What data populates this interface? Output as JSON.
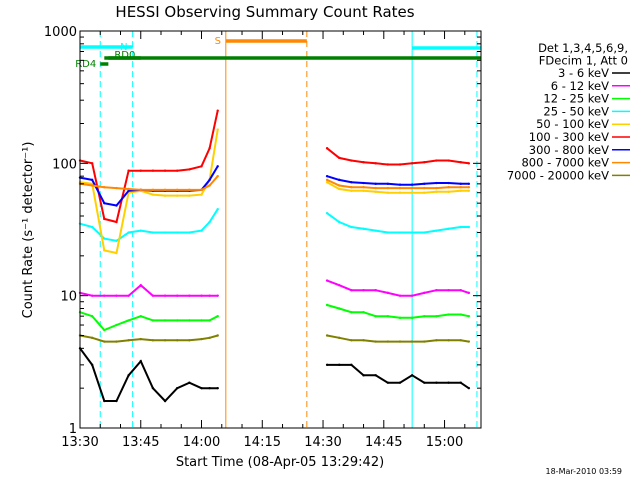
{
  "chart_data": {
    "type": "line",
    "title": "HESSI Observing Summary Count Rates",
    "xlabel": "Start Time (08-Apr-05 13:29:42)",
    "ylabel": "Count Rate (s⁻¹ detector⁻¹)",
    "log_y": true,
    "ylim": [
      1,
      1000
    ],
    "xlim": [
      "13:30",
      "15:09"
    ],
    "x_ticks": [
      "13:30",
      "13:45",
      "14:00",
      "14:15",
      "14:30",
      "14:45",
      "15:00"
    ],
    "y_ticks": [
      "1",
      "10",
      "100",
      "1000"
    ],
    "legend_header": [
      "Det 1,3,4,5,6,9,",
      "FDecim 1, Att 0"
    ],
    "legend_position": "right",
    "timestamp": "18-Mar-2010 03:59",
    "series": [
      {
        "name": "3 - 6 keV",
        "color": "#000000",
        "x": [
          "13:30",
          "13:33",
          "13:36",
          "13:39",
          "13:42",
          "13:45",
          "13:48",
          "13:51",
          "13:54",
          "13:57",
          "14:00",
          "14:02",
          "14:04",
          null,
          "14:31",
          "14:34",
          "14:37",
          "14:40",
          "14:43",
          "14:46",
          "14:49",
          "14:52",
          "14:55",
          "14:58",
          "15:01",
          "15:04",
          "15:06"
        ],
        "values": [
          4,
          3,
          1.6,
          1.6,
          2.5,
          3.2,
          2,
          1.6,
          2,
          2.2,
          2,
          2,
          2,
          null,
          3,
          3,
          3,
          2.5,
          2.5,
          2.2,
          2.2,
          2.5,
          2.2,
          2.2,
          2.2,
          2.2,
          2
        ]
      },
      {
        "name": "6 - 12 keV",
        "color": "#ff00ff",
        "x": [
          "13:30",
          "13:33",
          "13:36",
          "13:39",
          "13:42",
          "13:45",
          "13:48",
          "13:51",
          "13:54",
          "13:57",
          "14:00",
          "14:02",
          "14:04",
          null,
          "14:31",
          "14:34",
          "14:37",
          "14:40",
          "14:43",
          "14:46",
          "14:49",
          "14:52",
          "14:55",
          "14:58",
          "15:01",
          "15:04",
          "15:06"
        ],
        "values": [
          10.5,
          10,
          10,
          10,
          10,
          12,
          10,
          10,
          10,
          10,
          10,
          10,
          10,
          null,
          13,
          12,
          11,
          11,
          11,
          10.5,
          10,
          10,
          10.5,
          11,
          11,
          11,
          10.5
        ]
      },
      {
        "name": "12 - 25 keV",
        "color": "#00ff00",
        "x": [
          "13:30",
          "13:33",
          "13:36",
          "13:39",
          "13:42",
          "13:45",
          "13:48",
          "13:51",
          "13:54",
          "13:57",
          "14:00",
          "14:02",
          "14:04",
          null,
          "14:31",
          "14:34",
          "14:37",
          "14:40",
          "14:43",
          "14:46",
          "14:49",
          "14:52",
          "14:55",
          "14:58",
          "15:01",
          "15:04",
          "15:06"
        ],
        "values": [
          7.5,
          7,
          5.5,
          6,
          6.5,
          7,
          6.5,
          6.5,
          6.5,
          6.5,
          6.5,
          6.5,
          7,
          null,
          8.5,
          8,
          7.5,
          7.5,
          7,
          7,
          6.8,
          6.8,
          7,
          7,
          7.2,
          7.2,
          7
        ]
      },
      {
        "name": "25 - 50 keV",
        "color": "#00ffff",
        "x": [
          "13:30",
          "13:33",
          "13:36",
          "13:39",
          "13:42",
          "13:45",
          "13:48",
          "13:51",
          "13:54",
          "13:57",
          "14:00",
          "14:02",
          "14:04",
          null,
          "14:31",
          "14:34",
          "14:37",
          "14:40",
          "14:43",
          "14:46",
          "14:49",
          "14:52",
          "14:55",
          "14:58",
          "15:01",
          "15:04",
          "15:06"
        ],
        "values": [
          35,
          33,
          27,
          26,
          30,
          31,
          30,
          30,
          30,
          30,
          31,
          36,
          45,
          null,
          42,
          36,
          33,
          32,
          31,
          30,
          30,
          30,
          30,
          31,
          32,
          33,
          33
        ]
      },
      {
        "name": "50 - 100 keV",
        "color": "#ffd000",
        "x": [
          "13:30",
          "13:33",
          "13:36",
          "13:39",
          "13:42",
          "13:45",
          "13:48",
          "13:51",
          "13:54",
          "13:57",
          "14:00",
          "14:02",
          "14:04",
          null,
          "14:31",
          "14:34",
          "14:37",
          "14:40",
          "14:43",
          "14:46",
          "14:49",
          "14:52",
          "14:55",
          "14:58",
          "15:01",
          "15:04",
          "15:06"
        ],
        "values": [
          72,
          70,
          22,
          21,
          60,
          62,
          58,
          57,
          57,
          57,
          58,
          75,
          180,
          null,
          72,
          64,
          62,
          62,
          61,
          60,
          60,
          60,
          60,
          61,
          61,
          62,
          62
        ]
      },
      {
        "name": "100 - 300 keV",
        "color": "#ff0000",
        "x": [
          "13:30",
          "13:33",
          "13:36",
          "13:39",
          "13:42",
          "13:45",
          "13:48",
          "13:51",
          "13:54",
          "13:57",
          "14:00",
          "14:02",
          "14:04",
          null,
          "14:31",
          "14:34",
          "14:37",
          "14:40",
          "14:43",
          "14:46",
          "14:49",
          "14:52",
          "14:55",
          "14:58",
          "15:01",
          "15:04",
          "15:06"
        ],
        "values": [
          105,
          100,
          38,
          36,
          88,
          88,
          88,
          88,
          88,
          90,
          95,
          130,
          250,
          null,
          130,
          110,
          105,
          102,
          100,
          98,
          98,
          100,
          102,
          105,
          105,
          102,
          100
        ]
      },
      {
        "name": "300 - 800 keV",
        "color": "#0000ff",
        "x": [
          "13:30",
          "13:33",
          "13:36",
          "13:39",
          "13:42",
          "13:45",
          "13:48",
          "13:51",
          "13:54",
          "13:57",
          "14:00",
          "14:02",
          "14:04",
          null,
          "14:31",
          "14:34",
          "14:37",
          "14:40",
          "14:43",
          "14:46",
          "14:49",
          "14:52",
          "14:55",
          "14:58",
          "15:01",
          "15:04",
          "15:06"
        ],
        "values": [
          78,
          75,
          50,
          48,
          62,
          63,
          62,
          62,
          62,
          62,
          63,
          75,
          95,
          null,
          80,
          75,
          72,
          71,
          70,
          70,
          69,
          69,
          70,
          71,
          71,
          70,
          70
        ]
      },
      {
        "name": "800 - 7000 keV",
        "color": "#ff8800",
        "x": [
          "13:30",
          "13:33",
          "13:36",
          "13:39",
          "13:42",
          "13:45",
          "13:48",
          "13:51",
          "13:54",
          "13:57",
          "14:00",
          "14:02",
          "14:04",
          null,
          "14:31",
          "14:34",
          "14:37",
          "14:40",
          "14:43",
          "14:46",
          "14:49",
          "14:52",
          "14:55",
          "14:58",
          "15:01",
          "15:04",
          "15:06"
        ],
        "values": [
          70,
          68,
          66,
          65,
          64,
          63,
          63,
          63,
          63,
          63,
          63,
          68,
          80,
          null,
          75,
          68,
          66,
          66,
          65,
          65,
          65,
          65,
          65,
          65,
          66,
          66,
          66
        ]
      },
      {
        "name": "7000 - 20000 keV",
        "color": "#808000",
        "x": [
          "13:30",
          "13:33",
          "13:36",
          "13:39",
          "13:42",
          "13:45",
          "13:48",
          "13:51",
          "13:54",
          "13:57",
          "14:00",
          "14:02",
          "14:04",
          null,
          "14:31",
          "14:34",
          "14:37",
          "14:40",
          "14:43",
          "14:46",
          "14:49",
          "14:52",
          "14:55",
          "14:58",
          "15:01",
          "15:04",
          "15:06"
        ],
        "values": [
          5,
          4.8,
          4.5,
          4.5,
          4.6,
          4.7,
          4.6,
          4.6,
          4.6,
          4.6,
          4.7,
          4.8,
          5,
          null,
          5,
          4.8,
          4.6,
          4.6,
          4.5,
          4.5,
          4.5,
          4.5,
          4.5,
          4.6,
          4.6,
          4.6,
          4.5
        ]
      }
    ],
    "annotations": [
      {
        "label": "S",
        "color": "#ff8800",
        "interval": [
          "14:06",
          "14:26"
        ]
      },
      {
        "label": "N",
        "color": "#00ffff",
        "interval": [
          "13:30",
          "13:43"
        ]
      },
      {
        "label": "",
        "color": "#00ffff",
        "interval": [
          "14:52",
          "15:09"
        ]
      },
      {
        "label": "RD0",
        "color": "#008000",
        "interval": [
          "13:36",
          "13:45"
        ]
      },
      {
        "label": "RD4",
        "color": "#008000",
        "interval": [
          "13:35",
          "13:37"
        ]
      },
      {
        "label": "",
        "color": "#008000",
        "interval": [
          "13:37",
          "15:09"
        ]
      }
    ],
    "vertical_markers": [
      {
        "x": "13:30",
        "color": "#00ffff",
        "style": "solid"
      },
      {
        "x": "13:35",
        "color": "#00ffff",
        "style": "dashed"
      },
      {
        "x": "13:43",
        "color": "#00ffff",
        "style": "dashed"
      },
      {
        "x": "14:06",
        "color": "#ff8800",
        "style": "solid"
      },
      {
        "x": "14:26",
        "color": "#ff8800",
        "style": "dashed"
      },
      {
        "x": "14:52",
        "color": "#00ffff",
        "style": "solid"
      },
      {
        "x": "15:08",
        "color": "#00ffff",
        "style": "dashed"
      }
    ]
  }
}
